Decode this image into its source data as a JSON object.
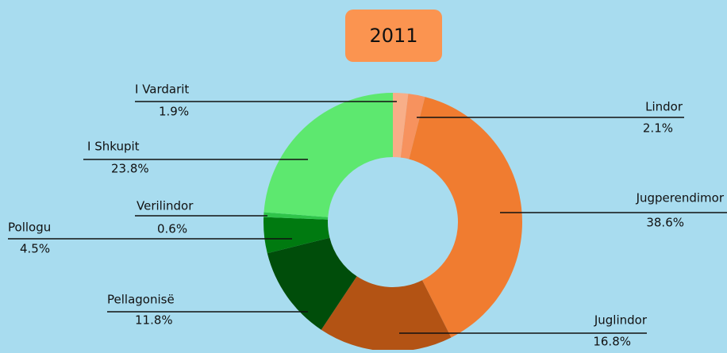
{
  "chart_data": {
    "type": "pie",
    "title": "2011",
    "categories": [
      "I Vardarit",
      "Lindor",
      "Jugperendimor",
      "Juglindor",
      "Pellagonisë",
      "Pollogu",
      "Verilindor",
      "I Shkupit"
    ],
    "values": [
      1.9,
      2.1,
      38.6,
      16.8,
      11.8,
      4.5,
      0.6,
      23.8
    ],
    "value_labels": [
      "1.9%",
      "2.1%",
      "38.6%",
      "16.8%",
      "11.8%",
      "4.5%",
      "0.6%",
      "23.8%"
    ],
    "colors": [
      "#f8ae88",
      "#f7925e",
      "#f07c30",
      "#b35314",
      "#004d0a",
      "#007a10",
      "#2fc44a",
      "#5de86f"
    ]
  }
}
